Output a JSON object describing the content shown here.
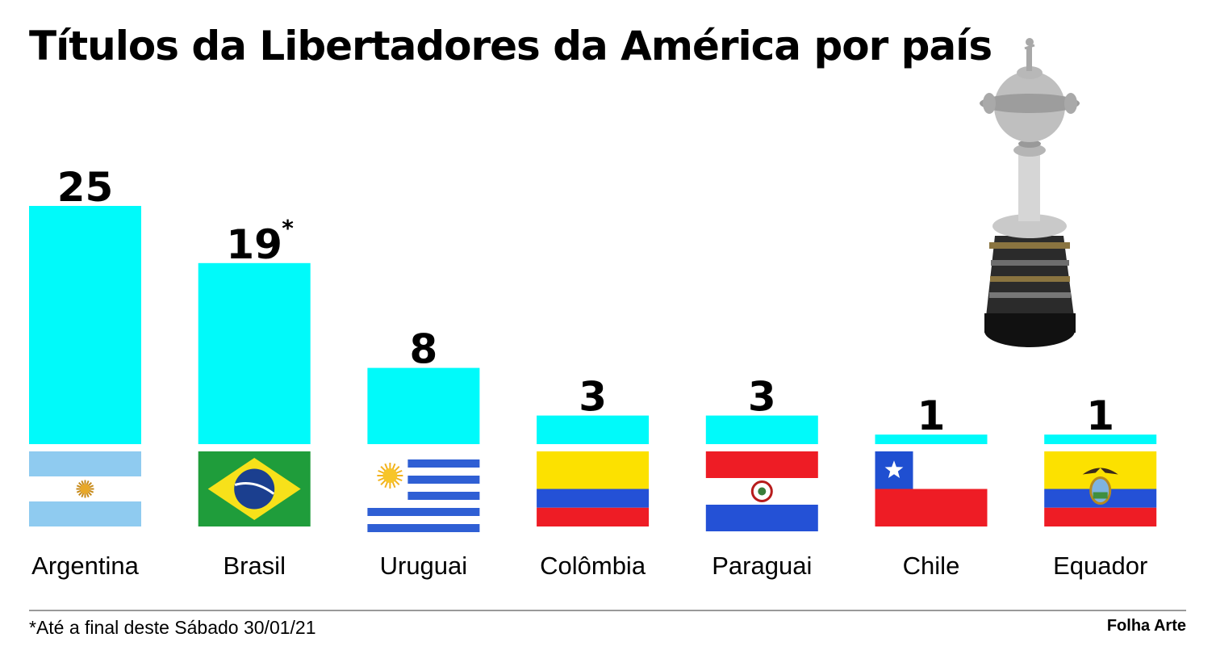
{
  "chart_data": {
    "type": "bar",
    "title": "Títulos da Libertadores da América por país",
    "categories": [
      "Argentina",
      "Brasil",
      "Uruguai",
      "Colômbia",
      "Paraguai",
      "Chile",
      "Equador"
    ],
    "values": [
      25,
      19,
      8,
      3,
      3,
      1,
      1
    ],
    "value_labels": [
      "25",
      "19",
      "8",
      "3",
      "3",
      "1",
      "1"
    ],
    "value_markers": [
      "",
      "*",
      "",
      "",
      "",
      "",
      ""
    ],
    "flags": [
      "argentina-flag",
      "brazil-flag",
      "uruguay-flag",
      "colombia-flag",
      "paraguay-flag",
      "chile-flag",
      "ecuador-flag"
    ],
    "xlabel": "",
    "ylabel": "",
    "ylim": [
      0,
      25
    ],
    "grid": false,
    "legend": "none",
    "bar_color": "#00fafa"
  },
  "footnote": "*Até a final deste Sábado 30/01/21",
  "credit": "Folha Arte",
  "decoration": "libertadores-trophy-icon"
}
